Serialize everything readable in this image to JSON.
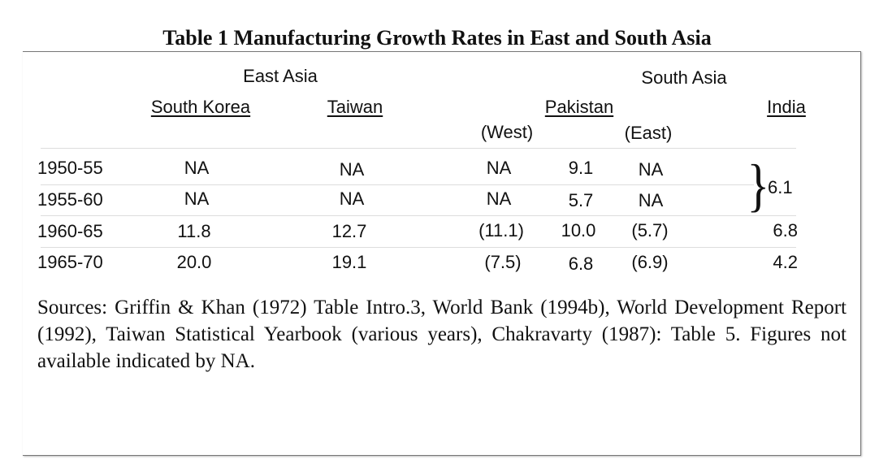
{
  "title": "Table 1 Manufacturing Growth Rates in East and South Asia",
  "headers": {
    "east_asia": "East Asia",
    "south_asia": "South Asia",
    "south_korea": "South Korea",
    "taiwan": "Taiwan",
    "pakistan": "Pakistan",
    "india": "India",
    "west": "(West)",
    "east": "(East)"
  },
  "rows": [
    {
      "period": "1950-55",
      "south_korea": "NA",
      "taiwan": "NA",
      "pak_west": "NA",
      "pak_total": "9.1",
      "pak_east": "NA"
    },
    {
      "period": "1955-60",
      "south_korea": "NA",
      "taiwan": "NA",
      "pak_west": "NA",
      "pak_total": "5.7",
      "pak_east": "NA"
    },
    {
      "period": "1960-65",
      "south_korea": "11.8",
      "taiwan": "12.7",
      "pak_west": "(11.1)",
      "pak_total": "10.0",
      "pak_east": "(5.7)",
      "india": "6.8"
    },
    {
      "period": "1965-70",
      "south_korea": "20.0",
      "taiwan": "19.1",
      "pak_west": "(7.5)",
      "pak_total": "6.8",
      "pak_east": "(6.9)",
      "india": "4.2"
    }
  ],
  "india_1950_60": "6.1",
  "sources": "Sources: Griffin & Khan (1972) Table Intro.3, World Bank (1994b), World Development Report (1992), Taiwan Statistical Yearbook (various years), Chakravarty (1987): Table 5. Figures not available indicated by NA."
}
